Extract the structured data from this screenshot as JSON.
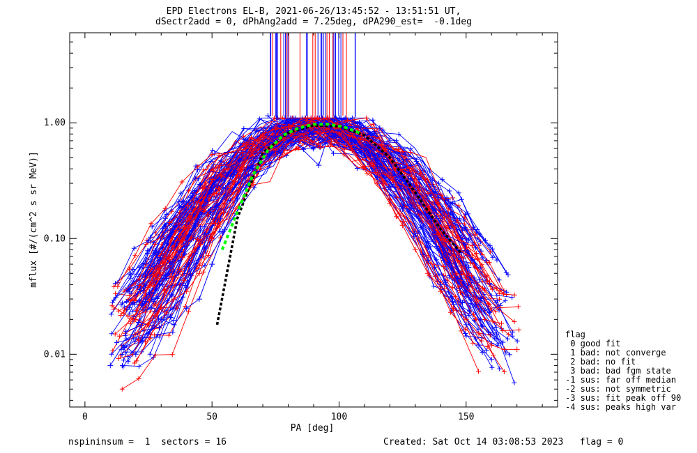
{
  "header": {
    "title_line1": "EPD Electrons EL-B, 2021-06-26/13:45:52 - 13:51:51 UT,",
    "title_line2": "dSectr2add = 0, dPhAng2add = 7.25deg, dPA290_est=  -0.1deg"
  },
  "footer": {
    "left": "nspininsum =  1  sectors = 16",
    "right": "Created: Sat Oct 14 03:08:53 2023   flag = 0"
  },
  "legend": {
    "title": "flag",
    "items": [
      " 0 good fit",
      " 1 bad: not converge",
      " 2 bad: no fit",
      " 3 bad: bad fgm state",
      "-1 sus: far off median",
      "-2 sus: not symmetric",
      "-3 sus: fit peak off 90",
      "-4 sus: peaks high var"
    ]
  },
  "colors": {
    "red_series": "#ff0000",
    "blue_series": "#0000ff",
    "fit_green": "#00ff00",
    "median_black": "#000000"
  },
  "chart_data": {
    "type": "line",
    "xlabel": "PA [deg]",
    "ylabel": "mflux [#/(cm^2 s sr MeV)]",
    "xlim": [
      -6,
      186
    ],
    "ylim": [
      0.0035,
      6.0
    ],
    "yscale": "log",
    "xticks": [
      0,
      50,
      100,
      150
    ],
    "xtick_labels": [
      "0",
      "50",
      "100",
      "150"
    ],
    "yticks": [
      0.01,
      0.1,
      1.0
    ],
    "ytick_labels": [
      "0.01",
      "0.10",
      "1.00"
    ],
    "series": [
      {
        "marker": "none",
        "values": [
          [
            52,
            0.018
          ],
          [
            60,
            0.15
          ],
          [
            70,
            0.55
          ],
          [
            80,
            0.82
          ],
          [
            90,
            0.95
          ],
          [
            100,
            0.93
          ],
          [
            110,
            0.78
          ],
          [
            120,
            0.5
          ],
          [
            130,
            0.25
          ],
          [
            140,
            0.12
          ],
          [
            148,
            0.075
          ]
        ]
      },
      {
        "marker": "none",
        "values": [
          [
            54,
            0.08
          ],
          [
            60,
            0.17
          ],
          [
            66,
            0.35
          ],
          [
            72,
            0.58
          ],
          [
            78,
            0.78
          ],
          [
            84,
            0.9
          ],
          [
            90,
            0.97
          ],
          [
            96,
            0.97
          ],
          [
            102,
            0.92
          ],
          [
            108,
            0.82
          ]
        ]
      },
      {
        "marker": "+",
        "values": [
          [
            10,
            0.008
          ],
          [
            15,
            0.012
          ],
          [
            20,
            0.01
          ],
          [
            25,
            0.015
          ],
          [
            30,
            0.02
          ],
          [
            35,
            0.018
          ],
          [
            40,
            0.025
          ],
          [
            45,
            0.03
          ],
          [
            50,
            0.06
          ],
          [
            55,
            0.12
          ],
          [
            60,
            0.22
          ],
          [
            65,
            0.4
          ],
          [
            70,
            0.6
          ],
          [
            75,
            0.75
          ],
          [
            80,
            0.85
          ],
          [
            85,
            0.92
          ],
          [
            90,
            0.95
          ],
          [
            95,
            0.92
          ],
          [
            100,
            0.85
          ],
          [
            105,
            0.72
          ],
          [
            110,
            0.58
          ],
          [
            115,
            0.42
          ],
          [
            120,
            0.28
          ],
          [
            125,
            0.18
          ],
          [
            130,
            0.11
          ],
          [
            135,
            0.065
          ],
          [
            140,
            0.04
          ],
          [
            145,
            0.027
          ],
          [
            150,
            0.018
          ],
          [
            155,
            0.012
          ],
          [
            160,
            0.009
          ]
        ]
      },
      {
        "marker": "+",
        "values": [
          [
            20,
            0.02
          ],
          [
            25,
            0.018
          ],
          [
            30,
            0.025
          ],
          [
            35,
            0.03
          ],
          [
            40,
            0.035
          ],
          [
            45,
            0.05
          ],
          [
            50,
            0.1
          ],
          [
            55,
            0.2
          ],
          [
            60,
            0.35
          ],
          [
            65,
            0.6
          ],
          [
            70,
            0.8
          ],
          [
            75,
            0.88
          ],
          [
            80,
            0.92
          ],
          [
            85,
            0.95
          ],
          [
            90,
            0.96
          ],
          [
            95,
            0.9
          ],
          [
            100,
            0.8
          ],
          [
            105,
            0.6
          ],
          [
            110,
            0.42
          ],
          [
            115,
            0.3
          ],
          [
            120,
            0.2
          ],
          [
            125,
            0.13
          ],
          [
            130,
            0.08
          ],
          [
            135,
            0.05
          ],
          [
            140,
            0.035
          ],
          [
            145,
            0.025
          ],
          [
            150,
            0.02
          ],
          [
            155,
            0.015
          ],
          [
            160,
            0.012
          ],
          [
            165,
            0.011
          ],
          [
            170,
            0.011
          ]
        ]
      },
      {
        "marker": "+",
        "values": [
          [
            72,
            1.15
          ],
          [
            92,
            0.43
          ],
          [
            97,
            0.95
          ],
          [
            116,
            0.9
          ],
          [
            120,
            0.7
          ]
        ]
      }
    ]
  }
}
